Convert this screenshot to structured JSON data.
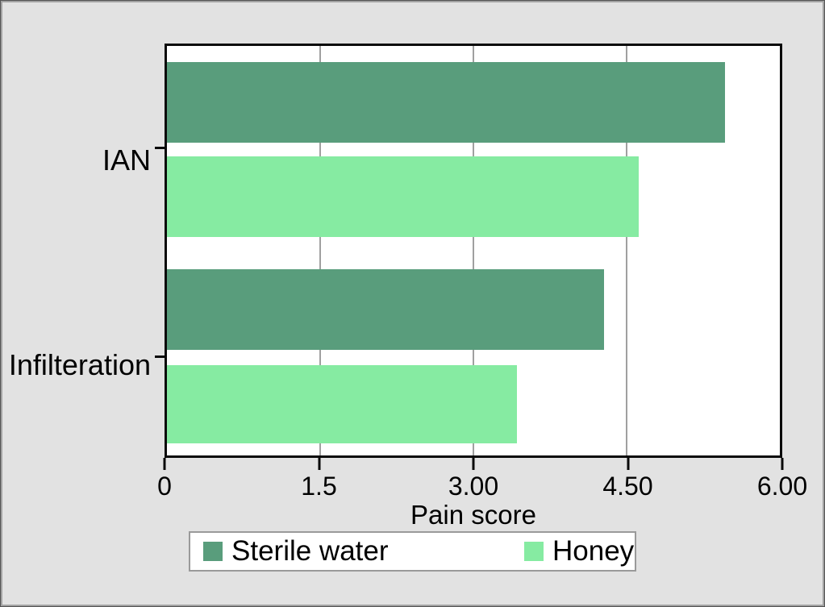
{
  "chart_data": {
    "type": "bar",
    "orientation": "horizontal",
    "title": "",
    "xlabel": "Pain score",
    "ylabel": "",
    "categories": [
      "IAN",
      "Infilteration"
    ],
    "series": [
      {
        "name": "Sterile water",
        "color": "#599d7c",
        "values": [
          5.46,
          4.28
        ]
      },
      {
        "name": "Honey",
        "color": "#86eba2",
        "values": [
          4.62,
          3.43
        ]
      }
    ],
    "xlim": [
      0,
      6
    ],
    "xticks": [
      {
        "value": 0,
        "label": "0"
      },
      {
        "value": 1.5,
        "label": "1.5"
      },
      {
        "value": 3,
        "label": "3.00"
      },
      {
        "value": 4.5,
        "label": "4.50"
      },
      {
        "value": 6,
        "label": "6.00"
      }
    ],
    "gridlines": [
      1.5,
      3,
      4.5
    ],
    "grid": "vertical-only",
    "legend_position": "bottom",
    "plot_bg": "#ffffff",
    "page_bg": "#e2e2e2",
    "frame_color": "#0a0a0a",
    "gridline_color": "#a0a0a0"
  }
}
